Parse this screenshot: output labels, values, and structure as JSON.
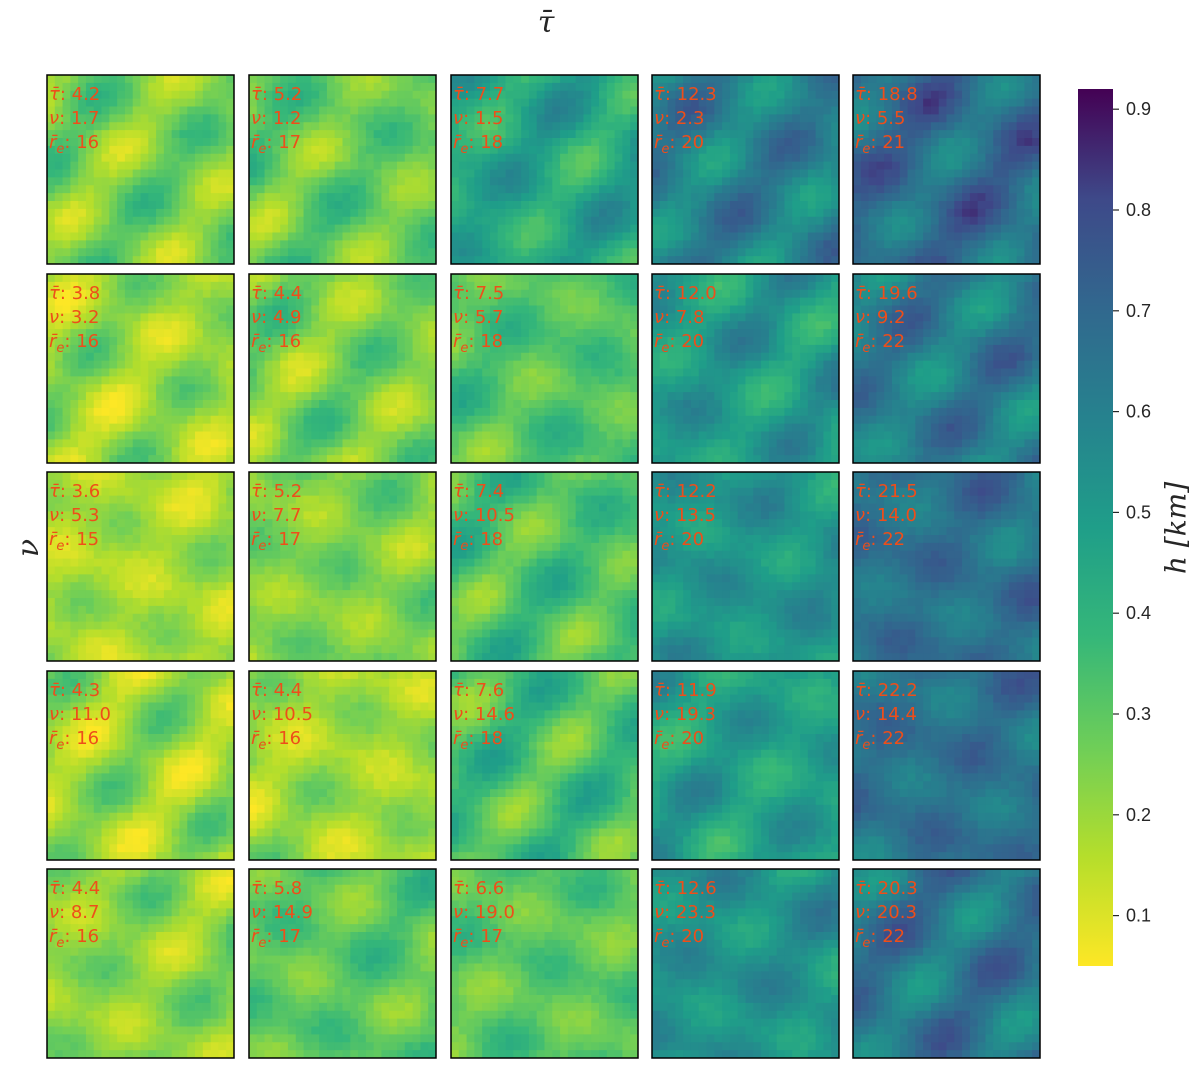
{
  "chart_data": {
    "type": "heatmap",
    "title": "τ̄",
    "ylabel": "ν",
    "grid": false,
    "colormap": "viridis_r",
    "colorbar": {
      "label": "h [km]",
      "range": [
        0.05,
        0.92
      ],
      "ticks": [
        0.1,
        0.2,
        0.3,
        0.4,
        0.5,
        0.6,
        0.7,
        0.8,
        0.9
      ],
      "tick_labels": [
        "0.1",
        "0.2",
        "0.3",
        "0.4",
        "0.5",
        "0.6",
        "0.7",
        "0.8",
        "0.9"
      ]
    },
    "panels": [
      [
        {
          "tau": "4.2",
          "nu": "1.7",
          "re": "16",
          "mean_h": 0.25
        },
        {
          "tau": "5.2",
          "nu": "1.2",
          "re": "17",
          "mean_h": 0.28
        },
        {
          "tau": "7.7",
          "nu": "1.5",
          "re": "18",
          "mean_h": 0.45
        },
        {
          "tau": "12.3",
          "nu": "2.3",
          "re": "20",
          "mean_h": 0.6
        },
        {
          "tau": "18.8",
          "nu": "5.5",
          "re": "21",
          "mean_h": 0.68
        }
      ],
      [
        {
          "tau": "3.8",
          "nu": "3.2",
          "re": "16",
          "mean_h": 0.2
        },
        {
          "tau": "4.4",
          "nu": "4.9",
          "re": "16",
          "mean_h": 0.25
        },
        {
          "tau": "7.5",
          "nu": "5.7",
          "re": "18",
          "mean_h": 0.32
        },
        {
          "tau": "12.0",
          "nu": "7.8",
          "re": "20",
          "mean_h": 0.5
        },
        {
          "tau": "19.6",
          "nu": "9.2",
          "re": "22",
          "mean_h": 0.62
        }
      ],
      [
        {
          "tau": "3.6",
          "nu": "5.3",
          "re": "15",
          "mean_h": 0.18
        },
        {
          "tau": "5.2",
          "nu": "7.7",
          "re": "17",
          "mean_h": 0.24
        },
        {
          "tau": "7.4",
          "nu": "10.5",
          "re": "18",
          "mean_h": 0.33
        },
        {
          "tau": "12.2",
          "nu": "13.5",
          "re": "20",
          "mean_h": 0.52
        },
        {
          "tau": "21.5",
          "nu": "14.0",
          "re": "22",
          "mean_h": 0.66
        }
      ],
      [
        {
          "tau": "4.3",
          "nu": "11.0",
          "re": "16",
          "mean_h": 0.2
        },
        {
          "tau": "4.4",
          "nu": "10.5",
          "re": "16",
          "mean_h": 0.19
        },
        {
          "tau": "7.6",
          "nu": "14.6",
          "re": "18",
          "mean_h": 0.34
        },
        {
          "tau": "11.9",
          "nu": "19.3",
          "re": "20",
          "mean_h": 0.48
        },
        {
          "tau": "22.2",
          "nu": "14.4",
          "re": "22",
          "mean_h": 0.66
        }
      ],
      [
        {
          "tau": "4.4",
          "nu": "8.7",
          "re": "16",
          "mean_h": 0.22
        },
        {
          "tau": "5.8",
          "nu": "14.9",
          "re": "17",
          "mean_h": 0.3
        },
        {
          "tau": "6.6",
          "nu": "19.0",
          "re": "17",
          "mean_h": 0.3
        },
        {
          "tau": "12.6",
          "nu": "23.3",
          "re": "20",
          "mean_h": 0.53
        },
        {
          "tau": "20.3",
          "nu": "20.3",
          "re": "22",
          "mean_h": 0.64
        }
      ]
    ]
  },
  "colors": {
    "annotation": "#ee4e1a",
    "text": "#262626",
    "frame": "#000000"
  }
}
